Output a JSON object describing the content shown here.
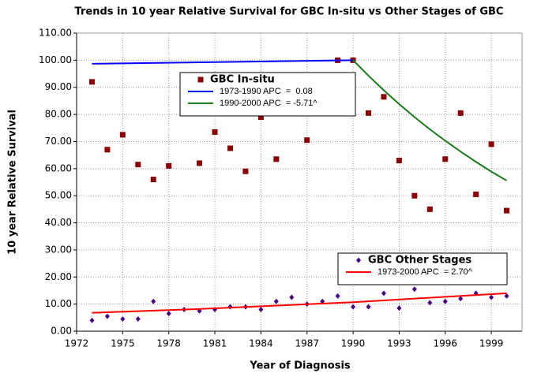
{
  "chart_data": {
    "type": "scatter",
    "title": "Trends in 10 year Relative Survival for GBC In-situ vs Other Stages of GBC",
    "x_label": "Year of Diagnosis",
    "y_label": "10 year Relative Survival",
    "xlim": [
      1972,
      2001
    ],
    "xticks": [
      1972,
      1975,
      1978,
      1981,
      1984,
      1987,
      1990,
      1993,
      1996,
      1999
    ],
    "ylim": [
      0,
      110
    ],
    "yticks": [
      {
        "value": 0,
        "label": "0.00"
      },
      {
        "value": 10,
        "label": "10.00"
      },
      {
        "value": 20,
        "label": "20.00"
      },
      {
        "value": 30,
        "label": "30.00"
      },
      {
        "value": 40,
        "label": "40.00"
      },
      {
        "value": 50,
        "label": "50.00"
      },
      {
        "value": 60,
        "label": "60.00"
      },
      {
        "value": 70,
        "label": "70.00"
      },
      {
        "value": 80,
        "label": "80.00"
      },
      {
        "value": 90,
        "label": "90.00"
      },
      {
        "value": 100,
        "label": "100.00"
      },
      {
        "value": 110,
        "label": "110.00"
      }
    ],
    "grid": true,
    "legend_groups": [
      [
        0,
        1,
        2
      ],
      [
        3,
        4
      ]
    ],
    "series": [
      {
        "name": "GBC In-situ",
        "type": "scatter",
        "marker": "square",
        "color": "#8b0000",
        "x": [
          1973,
          1974,
          1975,
          1976,
          1977,
          1978,
          1980,
          1981,
          1982,
          1983,
          1984,
          1985,
          1987,
          1989,
          1990,
          1991,
          1992,
          1993,
          1994,
          1995,
          1996,
          1997,
          1998,
          1999,
          2000
        ],
        "values": [
          92,
          67,
          72.5,
          61.5,
          56,
          61,
          62,
          73.5,
          67.5,
          59,
          79,
          63.5,
          70.5,
          100,
          100,
          80.5,
          86.5,
          63,
          50,
          45,
          63.5,
          80.5,
          50.5,
          69,
          44.5
        ]
      },
      {
        "name": "1973-1990 APC  =  0.08",
        "type": "line",
        "color": "#0000ff",
        "x": [
          1973,
          1990
        ],
        "values": [
          98.7,
          100
        ]
      },
      {
        "name": "1990-2000 APC  = -5.71^",
        "type": "line",
        "color": "#1a7a1a",
        "x": [
          1990,
          1991,
          1992,
          1993,
          1994,
          1995,
          1996,
          1997,
          1998,
          1999,
          2000
        ],
        "values": [
          100,
          94.3,
          88.9,
          83.8,
          79.0,
          74.5,
          70.3,
          66.3,
          62.5,
          58.9,
          55.6
        ]
      },
      {
        "name": "GBC Other Stages",
        "type": "scatter",
        "marker": "diamond",
        "color": "#4b0082",
        "x": [
          1973,
          1974,
          1975,
          1976,
          1977,
          1978,
          1979,
          1980,
          1981,
          1982,
          1983,
          1984,
          1985,
          1986,
          1987,
          1988,
          1989,
          1990,
          1991,
          1992,
          1993,
          1994,
          1995,
          1996,
          1997,
          1998,
          1999,
          2000
        ],
        "values": [
          4,
          5.5,
          4.5,
          4.5,
          11,
          6.5,
          8,
          7.5,
          8,
          9,
          9,
          8,
          11,
          12.5,
          10,
          11,
          13,
          9,
          9,
          14,
          8.5,
          15.5,
          10.5,
          11,
          12,
          14,
          12.5,
          13
        ]
      },
      {
        "name": "1973-2000 APC  = 2.70^",
        "type": "line",
        "color": "#ff0000",
        "x": [
          1973,
          1980,
          1990,
          2000
        ],
        "values": [
          6.8,
          8.2,
          10.7,
          14.0
        ]
      }
    ]
  }
}
